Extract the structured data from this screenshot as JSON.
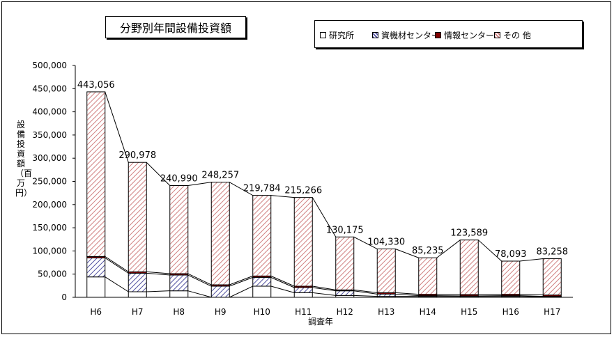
{
  "chart_data": {
    "type": "stacked-bar",
    "title": "分野別年間設備投資額",
    "xlabel": "調査年",
    "ylabel": "設備投資額（百万円）",
    "ylim": [
      0,
      500000
    ],
    "yticks": [
      "0",
      "50,000",
      "100,000",
      "150,000",
      "200,000",
      "250,000",
      "300,000",
      "350,000",
      "400,000",
      "450,000",
      "500,000"
    ],
    "ytick_values": [
      0,
      50000,
      100000,
      150000,
      200000,
      250000,
      300000,
      350000,
      400000,
      450000,
      500000
    ],
    "categories": [
      "H6",
      "H7",
      "H8",
      "H9",
      "H10",
      "H11",
      "H12",
      "H13",
      "H14",
      "H15",
      "H16",
      "H17"
    ],
    "totals": [
      "443,056",
      "290,978",
      "240,990",
      "248,257",
      "219,784",
      "215,266",
      "130,175",
      "104,330",
      "85,235",
      "123,589",
      "78,093",
      "83,258"
    ],
    "series": [
      {
        "name": "研究所",
        "color": "#ffffff",
        "pattern": "none",
        "values": [
          44000,
          12000,
          14000,
          0,
          24000,
          10000,
          4000,
          2000,
          2000,
          2000,
          2000,
          1000
        ]
      },
      {
        "name": "資機材センター",
        "color": "#8080c0",
        "pattern": "diagonal-blue",
        "values": [
          41000,
          40000,
          34000,
          24000,
          19000,
          11000,
          10000,
          5000,
          1500,
          1000,
          1500,
          1000
        ]
      },
      {
        "name": "情報センター",
        "color": "#800000",
        "pattern": "solid-maroon",
        "values": [
          3000,
          3000,
          3000,
          3000,
          3000,
          3000,
          2000,
          3000,
          3000,
          3000,
          3000,
          3000
        ]
      },
      {
        "name": "その 他",
        "color": "#d08080",
        "pattern": "diagonal-red",
        "values": [
          355056,
          235978,
          189990,
          221257,
          173784,
          191266,
          114175,
          94330,
          78735,
          117589,
          71593,
          78258
        ]
      }
    ],
    "grid": false,
    "legend_position": "top-right"
  }
}
